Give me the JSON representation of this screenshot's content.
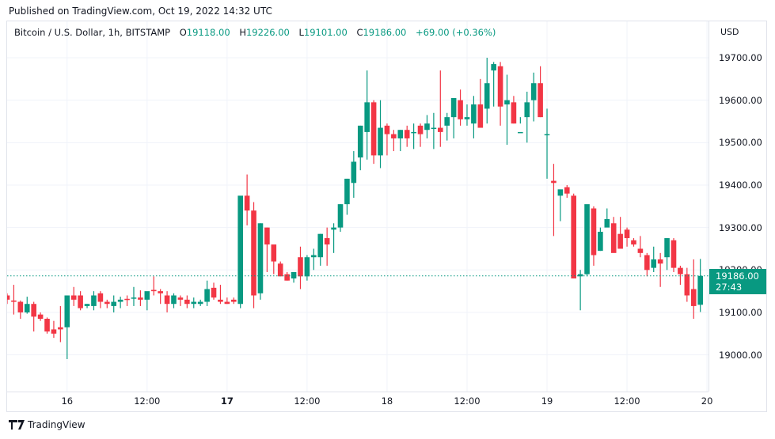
{
  "header": {
    "published": "Published on TradingView.com, Oct 19, 2022 14:32 UTC"
  },
  "legend": {
    "symbol": "Bitcoin / U.S. Dollar, 1h, BITSTAMP",
    "o_label": "O",
    "o_value": "19118.00",
    "h_label": "H",
    "h_value": "19226.00",
    "l_label": "L",
    "l_value": "19101.00",
    "c_label": "C",
    "c_value": "19186.00",
    "change": "+69.00 (+0.36%)"
  },
  "price_axis": {
    "currency": "USD",
    "last_price": "19186.00",
    "countdown": "27:43"
  },
  "footer": {
    "brand": "TradingView"
  },
  "colors": {
    "up": "#089981",
    "down": "#f23645",
    "grid": "#f0f3fa",
    "last_line": "#089981"
  },
  "chart_data": {
    "type": "candlestick",
    "title": "Bitcoin / U.S. Dollar, 1h, BITSTAMP",
    "xlabel": "",
    "ylabel": "USD",
    "ylim": [
      18910,
      19735
    ],
    "grid": true,
    "y_ticks": [
      19000,
      19100,
      19200,
      19300,
      19400,
      19500,
      19600,
      19700
    ],
    "y_tick_labels": [
      "19000.00",
      "19100.00",
      "19200.00",
      "19300.00",
      "19400.00",
      "19500.00",
      "19600.00",
      "19700.00"
    ],
    "x_tick_labels": [
      {
        "label": "16",
        "index": 9,
        "bold": false
      },
      {
        "label": "12:00",
        "index": 21,
        "bold": false
      },
      {
        "label": "17",
        "index": 33,
        "bold": true
      },
      {
        "label": "12:00",
        "index": 45,
        "bold": false
      },
      {
        "label": "18",
        "index": 57,
        "bold": false
      },
      {
        "label": "12:00",
        "index": 69,
        "bold": false
      },
      {
        "label": "19",
        "index": 81,
        "bold": false
      },
      {
        "label": "12:00",
        "index": 93,
        "bold": false
      },
      {
        "label": "20",
        "index": 105,
        "bold": false
      }
    ],
    "last_price": 19186,
    "candles_ohlc": [
      [
        19140,
        19145,
        19120,
        19130
      ],
      [
        19128,
        19165,
        19095,
        19125
      ],
      [
        19125,
        19128,
        19085,
        19100
      ],
      [
        19100,
        19137,
        19097,
        19120
      ],
      [
        19120,
        19125,
        19055,
        19090
      ],
      [
        19095,
        19100,
        19080,
        19085
      ],
      [
        19085,
        19088,
        19050,
        19055
      ],
      [
        19060,
        19080,
        19040,
        19050
      ],
      [
        19065,
        19115,
        19030,
        19060
      ],
      [
        19065,
        19140,
        18990,
        19140
      ],
      [
        19140,
        19160,
        19115,
        19130
      ],
      [
        19140,
        19150,
        19105,
        19110
      ],
      [
        19115,
        19120,
        19110,
        19120
      ],
      [
        19115,
        19150,
        19105,
        19140
      ],
      [
        19145,
        19150,
        19110,
        19125
      ],
      [
        19125,
        19130,
        19110,
        19120
      ],
      [
        19115,
        19140,
        19100,
        19125
      ],
      [
        19125,
        19137,
        19110,
        19130
      ],
      [
        19132,
        19140,
        19115,
        19130
      ],
      [
        19133,
        19160,
        19115,
        19135
      ],
      [
        19135,
        19152,
        19115,
        19130
      ],
      [
        19130,
        19140,
        19105,
        19150
      ],
      [
        19153,
        19185,
        19140,
        19150
      ],
      [
        19150,
        19155,
        19120,
        19145
      ],
      [
        19140,
        19150,
        19100,
        19120
      ],
      [
        19120,
        19145,
        19110,
        19140
      ],
      [
        19135,
        19140,
        19115,
        19130
      ],
      [
        19130,
        19140,
        19110,
        19120
      ],
      [
        19120,
        19135,
        19110,
        19125
      ],
      [
        19120,
        19130,
        19115,
        19125
      ],
      [
        19125,
        19175,
        19115,
        19155
      ],
      [
        19158,
        19170,
        19130,
        19135
      ],
      [
        19130,
        19165,
        19120,
        19125
      ],
      [
        19125,
        19135,
        19120,
        19120
      ],
      [
        19130,
        19135,
        19120,
        19125
      ],
      [
        19120,
        19170,
        19110,
        19375
      ],
      [
        19375,
        19425,
        19305,
        19340
      ],
      [
        19340,
        19360,
        19110,
        19140
      ],
      [
        19145,
        19310,
        19130,
        19310
      ],
      [
        19300,
        19300,
        19195,
        19260
      ],
      [
        19260,
        19255,
        19190,
        19220
      ],
      [
        19215,
        19220,
        19185,
        19185
      ],
      [
        19190,
        19195,
        19175,
        19175
      ],
      [
        19180,
        19195,
        19170,
        19195
      ],
      [
        19230,
        19255,
        19155,
        19185
      ],
      [
        19185,
        19235,
        19175,
        19230
      ],
      [
        19230,
        19250,
        19200,
        19235
      ],
      [
        19230,
        19285,
        19210,
        19285
      ],
      [
        19275,
        19300,
        19210,
        19260
      ],
      [
        19295,
        19310,
        19240,
        19300
      ],
      [
        19300,
        19355,
        19290,
        19355
      ],
      [
        19355,
        19415,
        19330,
        19415
      ],
      [
        19405,
        19480,
        19370,
        19455
      ],
      [
        19465,
        19540,
        19435,
        19540
      ],
      [
        19525,
        19670,
        19460,
        19595
      ],
      [
        19595,
        19600,
        19450,
        19470
      ],
      [
        19470,
        19600,
        19440,
        19535
      ],
      [
        19540,
        19545,
        19470,
        19520
      ],
      [
        19520,
        19530,
        19480,
        19510
      ],
      [
        19510,
        19530,
        19480,
        19530
      ],
      [
        19530,
        19540,
        19490,
        19510
      ],
      [
        19525,
        19545,
        19485,
        19525
      ],
      [
        19540,
        19545,
        19490,
        19520
      ],
      [
        19530,
        19565,
        19510,
        19545
      ],
      [
        19535,
        19570,
        19485,
        19535
      ],
      [
        19535,
        19670,
        19490,
        19525
      ],
      [
        19540,
        19570,
        19505,
        19560
      ],
      [
        19560,
        19600,
        19510,
        19605
      ],
      [
        19600,
        19625,
        19540,
        19555
      ],
      [
        19555,
        19590,
        19540,
        19560
      ],
      [
        19545,
        19610,
        19510,
        19590
      ],
      [
        19590,
        19650,
        19540,
        19535
      ],
      [
        19580,
        19700,
        19545,
        19640
      ],
      [
        19670,
        19690,
        19585,
        19685
      ],
      [
        19680,
        19690,
        19540,
        19585
      ],
      [
        19590,
        19660,
        19495,
        19600
      ],
      [
        19595,
        19610,
        19545,
        19545
      ],
      [
        19525,
        19560,
        19545,
        19525
      ],
      [
        19560,
        19620,
        19500,
        19595
      ],
      [
        19600,
        19665,
        19550,
        19640
      ],
      [
        19640,
        19680,
        19560,
        19560
      ],
      [
        19520,
        19580,
        19415,
        19520
      ],
      [
        19410,
        19450,
        19280,
        19405
      ],
      [
        19375,
        19385,
        19315,
        19390
      ],
      [
        19395,
        19400,
        19370,
        19380
      ],
      [
        19375,
        19380,
        19180,
        19180
      ],
      [
        19185,
        19200,
        19105,
        19190
      ],
      [
        19190,
        19335,
        19185,
        19355
      ],
      [
        19345,
        19350,
        19210,
        19235
      ],
      [
        19245,
        19300,
        19245,
        19290
      ],
      [
        19300,
        19345,
        19320,
        19320
      ],
      [
        19310,
        19325,
        19250,
        19240
      ],
      [
        19285,
        19325,
        19255,
        19250
      ],
      [
        19295,
        19300,
        19255,
        19275
      ],
      [
        19270,
        19275,
        19255,
        19260
      ],
      [
        19250,
        19280,
        19230,
        19240
      ],
      [
        19235,
        19240,
        19185,
        19200
      ],
      [
        19205,
        19255,
        19195,
        19225
      ],
      [
        19225,
        19240,
        19160,
        19215
      ],
      [
        19230,
        19275,
        19200,
        19275
      ],
      [
        19270,
        19275,
        19195,
        19205
      ],
      [
        19205,
        19210,
        19165,
        19190
      ],
      [
        19190,
        19205,
        19125,
        19140
      ],
      [
        19155,
        19225,
        19085,
        19115
      ],
      [
        19118,
        19226,
        19101,
        19186
      ]
    ]
  }
}
